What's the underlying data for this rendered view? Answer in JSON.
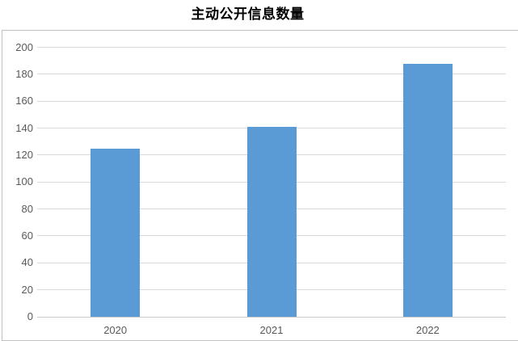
{
  "chart_data": {
    "type": "bar",
    "title": "主动公开信息数量",
    "categories": [
      "2020",
      "2021",
      "2022"
    ],
    "values": [
      125,
      141,
      188
    ],
    "xlabel": "",
    "ylabel": "",
    "ylim": [
      0,
      200
    ],
    "ytick_step": 20,
    "ytick_labels": [
      "0",
      "20",
      "40",
      "60",
      "80",
      "100",
      "120",
      "140",
      "160",
      "180",
      "200"
    ],
    "grid": true,
    "legend_position": "none",
    "colors": {
      "bar": "#5B9BD5",
      "gridline": "#D9D9D9",
      "axis_line": "#C9C9C9",
      "tick_label": "#595959",
      "title": "#000000",
      "chart_border": "#BFBFBF",
      "background": "#FFFFFF"
    }
  }
}
